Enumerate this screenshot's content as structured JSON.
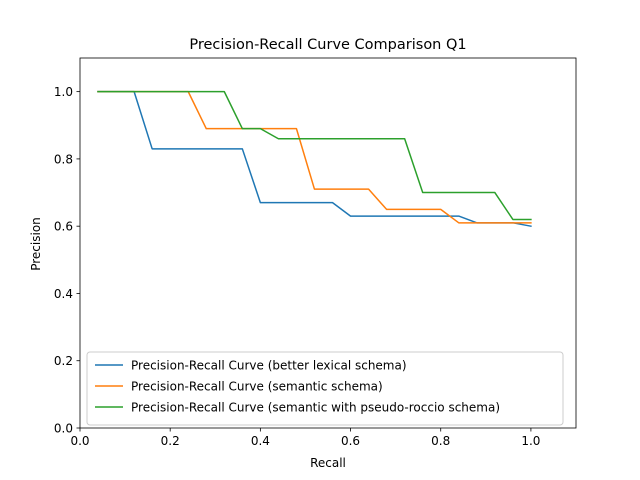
{
  "chart_data": {
    "type": "line",
    "title": "Precision-Recall Curve Comparison Q1",
    "xlabel": "Recall",
    "ylabel": "Precision",
    "xlim": [
      0.0,
      1.1
    ],
    "ylim": [
      0.0,
      1.1
    ],
    "xticks": [
      "0.0",
      "0.2",
      "0.4",
      "0.6",
      "0.8",
      "1.0"
    ],
    "yticks": [
      "0.0",
      "0.2",
      "0.4",
      "0.6",
      "0.8",
      "1.0"
    ],
    "grid": false,
    "legend_position": "lower-left",
    "series": [
      {
        "name": "Precision-Recall Curve (better lexical schema)",
        "color": "#1f77b4",
        "x": [
          0.04,
          0.08,
          0.12,
          0.16,
          0.2,
          0.24,
          0.28,
          0.32,
          0.36,
          0.4,
          0.44,
          0.48,
          0.52,
          0.56,
          0.6,
          0.64,
          0.68,
          0.72,
          0.76,
          0.8,
          0.84,
          0.88,
          0.92,
          0.96,
          1.0
        ],
        "y": [
          1.0,
          1.0,
          1.0,
          0.83,
          0.83,
          0.83,
          0.83,
          0.83,
          0.83,
          0.67,
          0.67,
          0.67,
          0.67,
          0.67,
          0.63,
          0.63,
          0.63,
          0.63,
          0.63,
          0.63,
          0.63,
          0.61,
          0.61,
          0.61,
          0.6
        ]
      },
      {
        "name": "Precision-Recall Curve (semantic schema)",
        "color": "#ff7f0e",
        "x": [
          0.04,
          0.08,
          0.12,
          0.16,
          0.2,
          0.24,
          0.28,
          0.32,
          0.36,
          0.4,
          0.44,
          0.48,
          0.52,
          0.56,
          0.6,
          0.64,
          0.68,
          0.72,
          0.76,
          0.8,
          0.84,
          0.88,
          0.92,
          0.96,
          1.0
        ],
        "y": [
          1.0,
          1.0,
          1.0,
          1.0,
          1.0,
          1.0,
          0.89,
          0.89,
          0.89,
          0.89,
          0.89,
          0.89,
          0.71,
          0.71,
          0.71,
          0.71,
          0.65,
          0.65,
          0.65,
          0.65,
          0.61,
          0.61,
          0.61,
          0.61,
          0.61
        ]
      },
      {
        "name": "Precision-Recall Curve (semantic with pseudo-roccio schema)",
        "color": "#2ca02c",
        "x": [
          0.04,
          0.08,
          0.12,
          0.16,
          0.2,
          0.24,
          0.28,
          0.32,
          0.36,
          0.4,
          0.44,
          0.48,
          0.52,
          0.56,
          0.6,
          0.64,
          0.68,
          0.72,
          0.76,
          0.8,
          0.84,
          0.88,
          0.92,
          0.96,
          1.0
        ],
        "y": [
          1.0,
          1.0,
          1.0,
          1.0,
          1.0,
          1.0,
          1.0,
          1.0,
          0.89,
          0.89,
          0.86,
          0.86,
          0.86,
          0.86,
          0.86,
          0.86,
          0.86,
          0.86,
          0.7,
          0.7,
          0.7,
          0.7,
          0.7,
          0.62,
          0.62
        ]
      }
    ]
  }
}
